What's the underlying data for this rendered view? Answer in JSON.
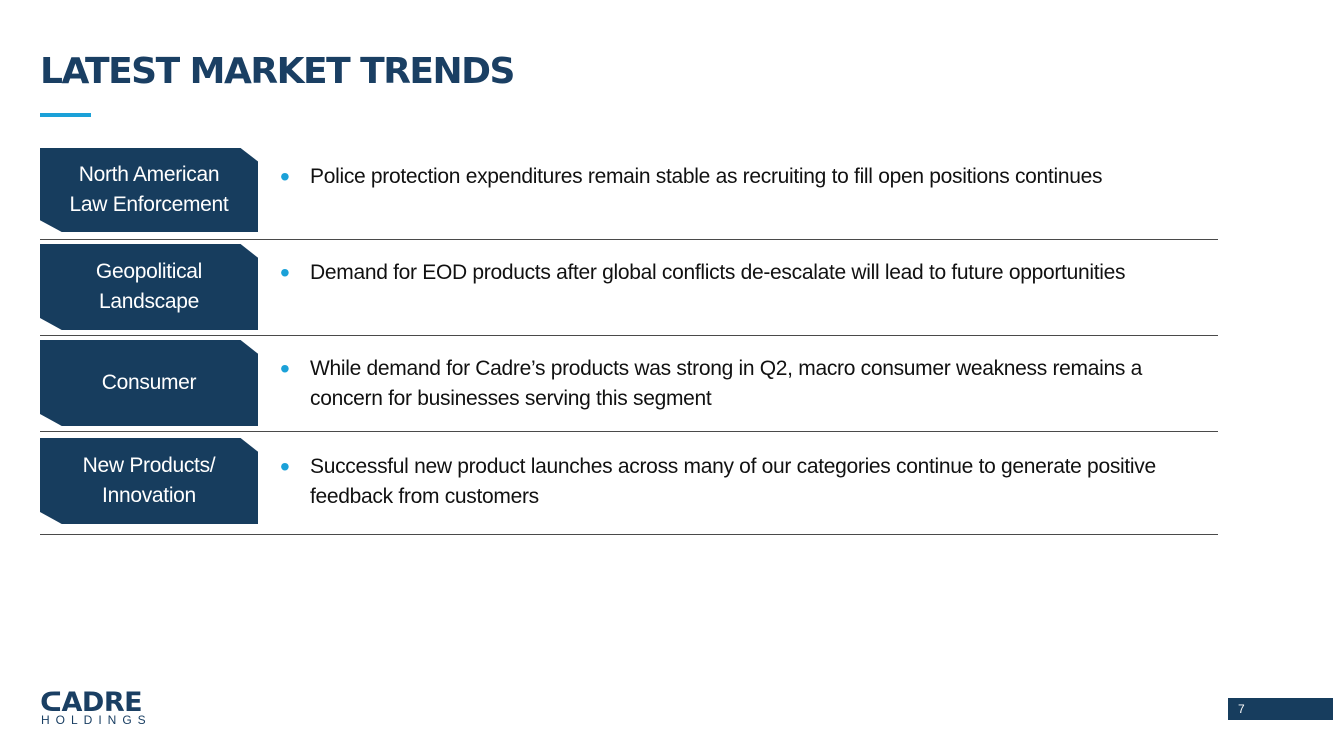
{
  "slide": {
    "title": "LATEST MARKET TRENDS",
    "page_number": "7"
  },
  "rows": [
    {
      "label_line1": "North American",
      "label_line2": "Law Enforcement",
      "bullet": "Police protection expenditures remain stable as recruiting to fill open positions continues"
    },
    {
      "label_line1": "Geopolitical",
      "label_line2": "Landscape",
      "bullet": "Demand for EOD products after global conflicts de-escalate will lead to future opportunities"
    },
    {
      "label_line1": "Consumer",
      "label_line2": "",
      "bullet": "While demand for Cadre’s products was strong in Q2, macro consumer weakness remains a concern for businesses serving this segment"
    },
    {
      "label_line1": "New Products/",
      "label_line2": "Innovation",
      "bullet": "Successful new product launches across many of our categories continue to generate positive feedback from customers"
    }
  ],
  "logo": {
    "word": "ᑕADRE",
    "sub": "HOLDINGS"
  },
  "colors": {
    "navy": "#173d5e",
    "title_navy": "#1a3f63",
    "accent_blue": "#1ba1d8"
  }
}
